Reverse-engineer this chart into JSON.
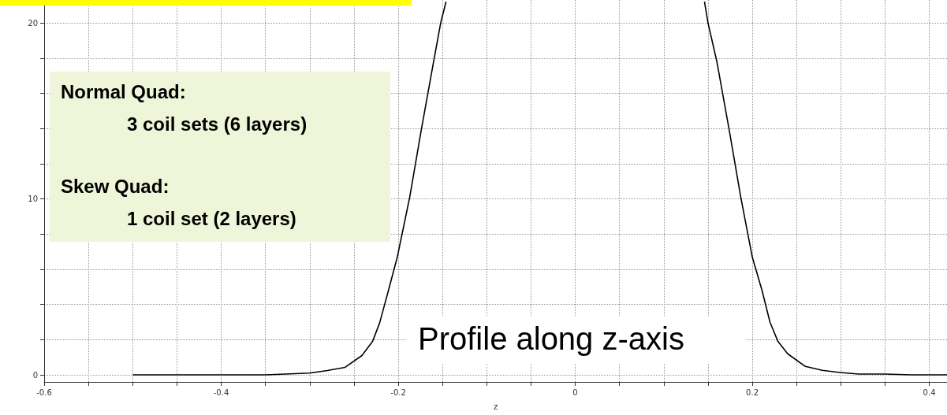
{
  "chart_data": {
    "type": "line",
    "xlabel": "z",
    "annotations": [
      "Normal Quad:",
      "3 coil sets (6 layers)",
      "Skew Quad:",
      "1 coil set (2 layers)",
      "Profile along z-axis"
    ],
    "x": [
      -0.5,
      -0.45,
      -0.4,
      -0.35,
      -0.3,
      -0.28,
      -0.26,
      -0.241,
      -0.229,
      -0.221,
      -0.211,
      -0.201,
      -0.187,
      -0.174,
      -0.16,
      -0.152,
      -0.146,
      0,
      0.146,
      0.15,
      0.16,
      0.174,
      0.187,
      0.2,
      0.211,
      0.22,
      0.229,
      0.24,
      0.26,
      0.279,
      0.299,
      0.32,
      0.35,
      0.38,
      0.42
    ],
    "series": [
      {
        "color": "#000000",
        "values": [
          0,
          0,
          0,
          0,
          0.1,
          0.25,
          0.43,
          1.1,
          1.9,
          2.95,
          4.8,
          6.7,
          10.1,
          13.9,
          17.8,
          20,
          21.2,
          null,
          21.2,
          20,
          17.8,
          13.9,
          10.1,
          6.7,
          4.8,
          3,
          1.9,
          1.2,
          0.48,
          0.26,
          0.14,
          0.05,
          0.05,
          0,
          0
        ]
      }
    ],
    "xlim": [
      -0.6,
      0.42
    ],
    "xticks": [
      -0.6,
      {
        "value": -0.55,
        "label": null
      },
      {
        "value": -0.5,
        "label": null
      },
      {
        "value": -0.45,
        "label": null
      },
      -0.4,
      {
        "value": -0.35,
        "label": null
      },
      {
        "value": -0.3,
        "label": null
      },
      {
        "value": -0.25,
        "label": null
      },
      -0.2,
      {
        "value": -0.15,
        "label": null
      },
      {
        "value": -0.1,
        "label": null
      },
      {
        "value": -0.05,
        "label": null
      },
      0,
      {
        "value": 0.05,
        "label": null
      },
      {
        "value": 0.1,
        "label": null
      },
      {
        "value": 0.15,
        "label": null
      },
      0.2,
      {
        "value": 0.25,
        "label": null
      },
      {
        "value": 0.3,
        "label": null
      },
      {
        "value": 0.35,
        "label": null
      },
      0.4
    ],
    "ylim": [
      -0.4,
      21.3
    ],
    "yticks": [
      0,
      {
        "value": 2,
        "label": null
      },
      {
        "value": 4,
        "label": null
      },
      {
        "value": 6,
        "label": null
      },
      {
        "value": 8,
        "label": null
      },
      10,
      {
        "value": 12,
        "label": null
      },
      {
        "value": 14,
        "label": null
      },
      {
        "value": 16,
        "label": null
      },
      {
        "value": 18,
        "label": null
      },
      20
    ],
    "grid": true,
    "marker": "none",
    "line_style": "solid"
  }
}
